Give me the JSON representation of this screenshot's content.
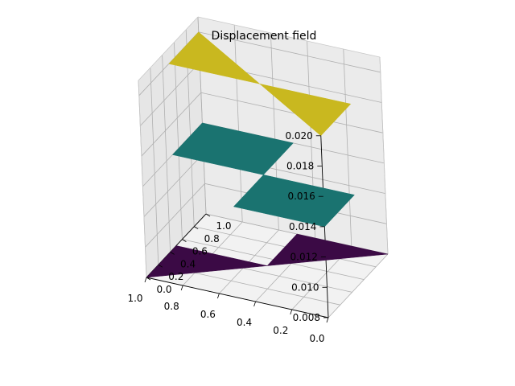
{
  "chart_data": {
    "type": "surface3d",
    "title": "Displacement field",
    "xlabel": "",
    "ylabel": "",
    "zlabel": "",
    "x_ticks": [
      "0.0",
      "0.2",
      "0.4",
      "0.6",
      "0.8",
      "1.0"
    ],
    "y_ticks": [
      "0.0",
      "0.2",
      "0.4",
      "0.6",
      "0.8",
      "1.0"
    ],
    "z_ticks": [
      "0.008",
      "0.010",
      "0.012",
      "0.014",
      "0.016",
      "0.018",
      "0.020"
    ],
    "xlim": [
      0,
      1
    ],
    "ylim": [
      0,
      1
    ],
    "zlim": [
      0.008,
      0.021
    ],
    "grid": true,
    "colormap": "viridis",
    "colors": {
      "low": "#3b0a45",
      "mid": "#1a7370",
      "high": "#c9b81f"
    },
    "faces": [
      {
        "level": "low",
        "z": 0.008,
        "vertices": [
          [
            0.0,
            1.0
          ],
          [
            0.5,
            1.0
          ],
          [
            0.5,
            0.5
          ]
        ]
      },
      {
        "level": "low",
        "z": 0.008,
        "vertices": [
          [
            1.0,
            0.0
          ],
          [
            1.0,
            0.5
          ],
          [
            0.5,
            0.5
          ]
        ]
      },
      {
        "level": "mid",
        "z": 0.014,
        "vertices": [
          [
            0.5,
            0.5
          ],
          [
            0.0,
            0.5
          ],
          [
            0.0,
            0.0
          ],
          [
            0.5,
            0.0
          ]
        ]
      },
      {
        "level": "mid",
        "z": 0.014,
        "vertices": [
          [
            1.0,
            1.0
          ],
          [
            0.5,
            1.0
          ],
          [
            0.5,
            0.5
          ],
          [
            1.0,
            0.5
          ]
        ]
      },
      {
        "level": "high",
        "z": 0.02,
        "vertices": [
          [
            0.0,
            0.0
          ],
          [
            0.0,
            0.5
          ],
          [
            0.5,
            0.5
          ]
        ]
      },
      {
        "level": "high",
        "z": 0.02,
        "vertices": [
          [
            1.0,
            1.0
          ],
          [
            1.0,
            0.5
          ],
          [
            0.5,
            0.5
          ]
        ]
      }
    ]
  }
}
